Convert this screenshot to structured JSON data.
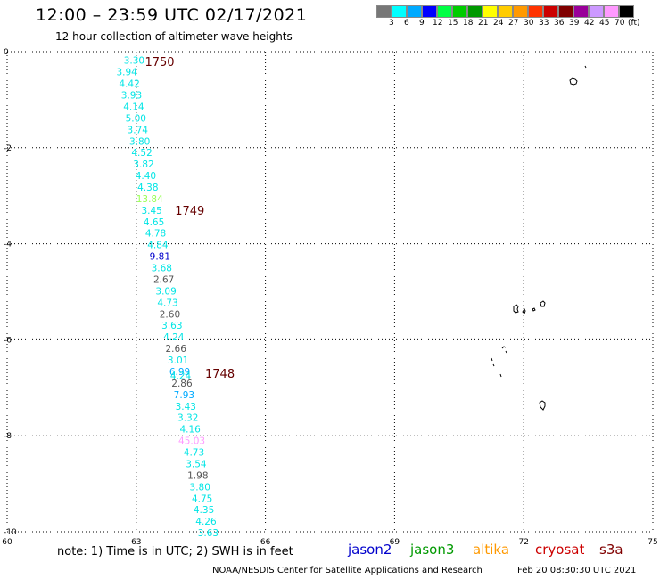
{
  "header": {
    "title": "12:00 – 23:59 UTC 02/17/2021",
    "subtitle": "12 hour collection of altimeter wave heights"
  },
  "colorbar": {
    "colors": [
      "#777777",
      "#00ffff",
      "#00aaff",
      "#0000ff",
      "#00ff44",
      "#00cc00",
      "#009900",
      "#ffff00",
      "#ffcc00",
      "#ff9900",
      "#ff3300",
      "#cc0000",
      "#800000",
      "#990099",
      "#cc99ff",
      "#ff99ff",
      "#000000"
    ],
    "labels": [
      "3",
      "6",
      "9",
      "12",
      "15",
      "18",
      "21",
      "24",
      "27",
      "30",
      "33",
      "36",
      "39",
      "42",
      "45",
      "70"
    ],
    "unit": "(ft)"
  },
  "chart_data": {
    "type": "scatter",
    "xlim": [
      60,
      75
    ],
    "ylim": [
      -10,
      0
    ],
    "x_ticks": [
      "60",
      "63",
      "66",
      "69",
      "72",
      "75"
    ],
    "y_ticks": [
      "0",
      "-2",
      "-4",
      "-6",
      "-8",
      "-10"
    ],
    "grid": true,
    "series": [
      {
        "name": "cryosat",
        "color": "#ff0000",
        "points": [
          {
            "lon": 62.95,
            "lat": -0.18,
            "label": "3.30",
            "color": "#00e5e5"
          },
          {
            "lon": 62.78,
            "lat": -0.42,
            "label": "3.94",
            "color": "#00e5e5"
          },
          {
            "lon": 62.84,
            "lat": -0.66,
            "label": "4.42",
            "color": "#00e5e5"
          },
          {
            "lon": 62.89,
            "lat": -0.9,
            "label": "3.93",
            "color": "#00e5e5"
          },
          {
            "lon": 62.94,
            "lat": -1.14,
            "label": "4.14",
            "color": "#00e5e5"
          },
          {
            "lon": 62.99,
            "lat": -1.38,
            "label": "5.00",
            "color": "#00e5e5"
          },
          {
            "lon": 63.03,
            "lat": -1.62,
            "label": "3.74",
            "color": "#00e5e5"
          },
          {
            "lon": 63.08,
            "lat": -1.86,
            "label": "3.80",
            "color": "#00e5e5"
          },
          {
            "lon": 63.13,
            "lat": -2.1,
            "label": "4.52",
            "color": "#00e5e5"
          },
          {
            "lon": 63.17,
            "lat": -2.34,
            "label": "3.82",
            "color": "#00e5e5"
          },
          {
            "lon": 63.22,
            "lat": -2.58,
            "label": "4.40",
            "color": "#00e5e5"
          },
          {
            "lon": 63.27,
            "lat": -2.82,
            "label": "4.38",
            "color": "#00e5e5"
          },
          {
            "lon": 63.31,
            "lat": -3.06,
            "label": "13.84",
            "color": "#99ff55"
          },
          {
            "lon": 63.36,
            "lat": -3.3,
            "label": "3.45",
            "color": "#00e5e5"
          },
          {
            "lon": 63.41,
            "lat": -3.54,
            "label": "4.65",
            "color": "#00e5e5"
          },
          {
            "lon": 63.45,
            "lat": -3.78,
            "label": "4.78",
            "color": "#00e5e5"
          },
          {
            "lon": 63.5,
            "lat": -4.02,
            "label": "4.84",
            "color": "#00e5e5"
          },
          {
            "lon": 63.55,
            "lat": -4.26,
            "label": "9.81",
            "color": "#0000cc"
          },
          {
            "lon": 63.59,
            "lat": -4.5,
            "label": "3.68",
            "color": "#00e5e5"
          },
          {
            "lon": 63.64,
            "lat": -4.74,
            "label": "2.67",
            "color": "#555555"
          },
          {
            "lon": 63.69,
            "lat": -4.98,
            "label": "3.09",
            "color": "#00e5e5"
          },
          {
            "lon": 63.73,
            "lat": -5.22,
            "label": "4.73",
            "color": "#00e5e5"
          },
          {
            "lon": 63.78,
            "lat": -5.46,
            "label": "2.60",
            "color": "#555555"
          },
          {
            "lon": 63.83,
            "lat": -5.7,
            "label": "3.63",
            "color": "#00e5e5"
          },
          {
            "lon": 63.87,
            "lat": -5.94,
            "label": "4.24",
            "color": "#00e5e5"
          },
          {
            "lon": 63.92,
            "lat": -6.18,
            "label": "2.66",
            "color": "#555555"
          },
          {
            "lon": 63.97,
            "lat": -6.42,
            "label": "3.01",
            "color": "#00e5e5"
          },
          {
            "lon": 64.01,
            "lat": -6.66,
            "label": "6.99",
            "color": "#00aaff"
          },
          {
            "lon": 64.03,
            "lat": -6.74,
            "label": "4.24",
            "color": "#00e5e5"
          },
          {
            "lon": 64.06,
            "lat": -6.9,
            "label": "2.86",
            "color": "#555555"
          },
          {
            "lon": 64.11,
            "lat": -7.14,
            "label": "7.93",
            "color": "#00aaff"
          },
          {
            "lon": 64.15,
            "lat": -7.38,
            "label": "3.43",
            "color": "#00e5e5"
          },
          {
            "lon": 64.2,
            "lat": -7.62,
            "label": "3.32",
            "color": "#00e5e5"
          },
          {
            "lon": 64.25,
            "lat": -7.86,
            "label": "4.16",
            "color": "#00e5e5"
          },
          {
            "lon": 64.29,
            "lat": -8.1,
            "label": "45.03",
            "color": "#ff99ff"
          },
          {
            "lon": 64.34,
            "lat": -8.34,
            "label": "4.73",
            "color": "#00e5e5"
          },
          {
            "lon": 64.39,
            "lat": -8.58,
            "label": "3.54",
            "color": "#00e5e5"
          },
          {
            "lon": 64.43,
            "lat": -8.82,
            "label": "1.98",
            "color": "#555555"
          },
          {
            "lon": 64.48,
            "lat": -9.06,
            "label": "3.80",
            "color": "#00e5e5"
          },
          {
            "lon": 64.53,
            "lat": -9.3,
            "label": "4.75",
            "color": "#00e5e5"
          },
          {
            "lon": 64.57,
            "lat": -9.54,
            "label": "4.35",
            "color": "#00e5e5"
          },
          {
            "lon": 64.62,
            "lat": -9.78,
            "label": "4.26",
            "color": "#00e5e5"
          },
          {
            "lon": 64.67,
            "lat": -10.02,
            "label": "3.63",
            "color": "#00e5e5"
          }
        ]
      }
    ],
    "time_labels": [
      {
        "lon": 63.2,
        "lat": -0.2,
        "text": "1750"
      },
      {
        "lon": 63.9,
        "lat": -3.3,
        "text": "1749"
      },
      {
        "lon": 64.6,
        "lat": -6.7,
        "text": "1748"
      }
    ]
  },
  "legend": {
    "note": "note: 1) Time is in UTC; 2) SWH is in feet",
    "satellites": [
      {
        "name": "jason2",
        "color": "#0000cc"
      },
      {
        "name": "jason3",
        "color": "#009900"
      },
      {
        "name": "altika",
        "color": "#ff9900"
      },
      {
        "name": "cryosat",
        "color": "#cc0000"
      },
      {
        "name": "s3a",
        "color": "#800000"
      }
    ]
  },
  "footer": {
    "credit": "NOAA/NESDIS Center for Satellite Applications and Research",
    "timestamp": "Feb 20 08:30:30 UTC 2021"
  }
}
